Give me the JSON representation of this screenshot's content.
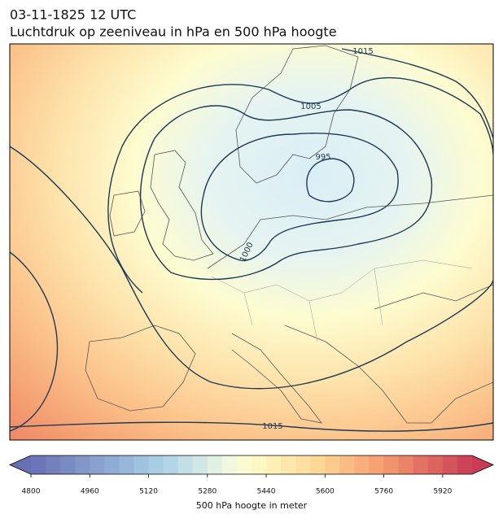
{
  "header": {
    "line1": "03-11-1825 12 UTC",
    "line2": "Luchtdruk op zeeniveau in hPa en 500 hPa hoogte"
  },
  "contour_labels": [
    "1015",
    "1005",
    "995",
    "1000",
    "1015"
  ],
  "colorbar": {
    "range": [
      4800,
      6000
    ],
    "step": 40,
    "ticks": [
      4800,
      4960,
      5120,
      5280,
      5440,
      5600,
      5760,
      5920
    ],
    "label": "500 hPa hoogte in meter"
  }
}
